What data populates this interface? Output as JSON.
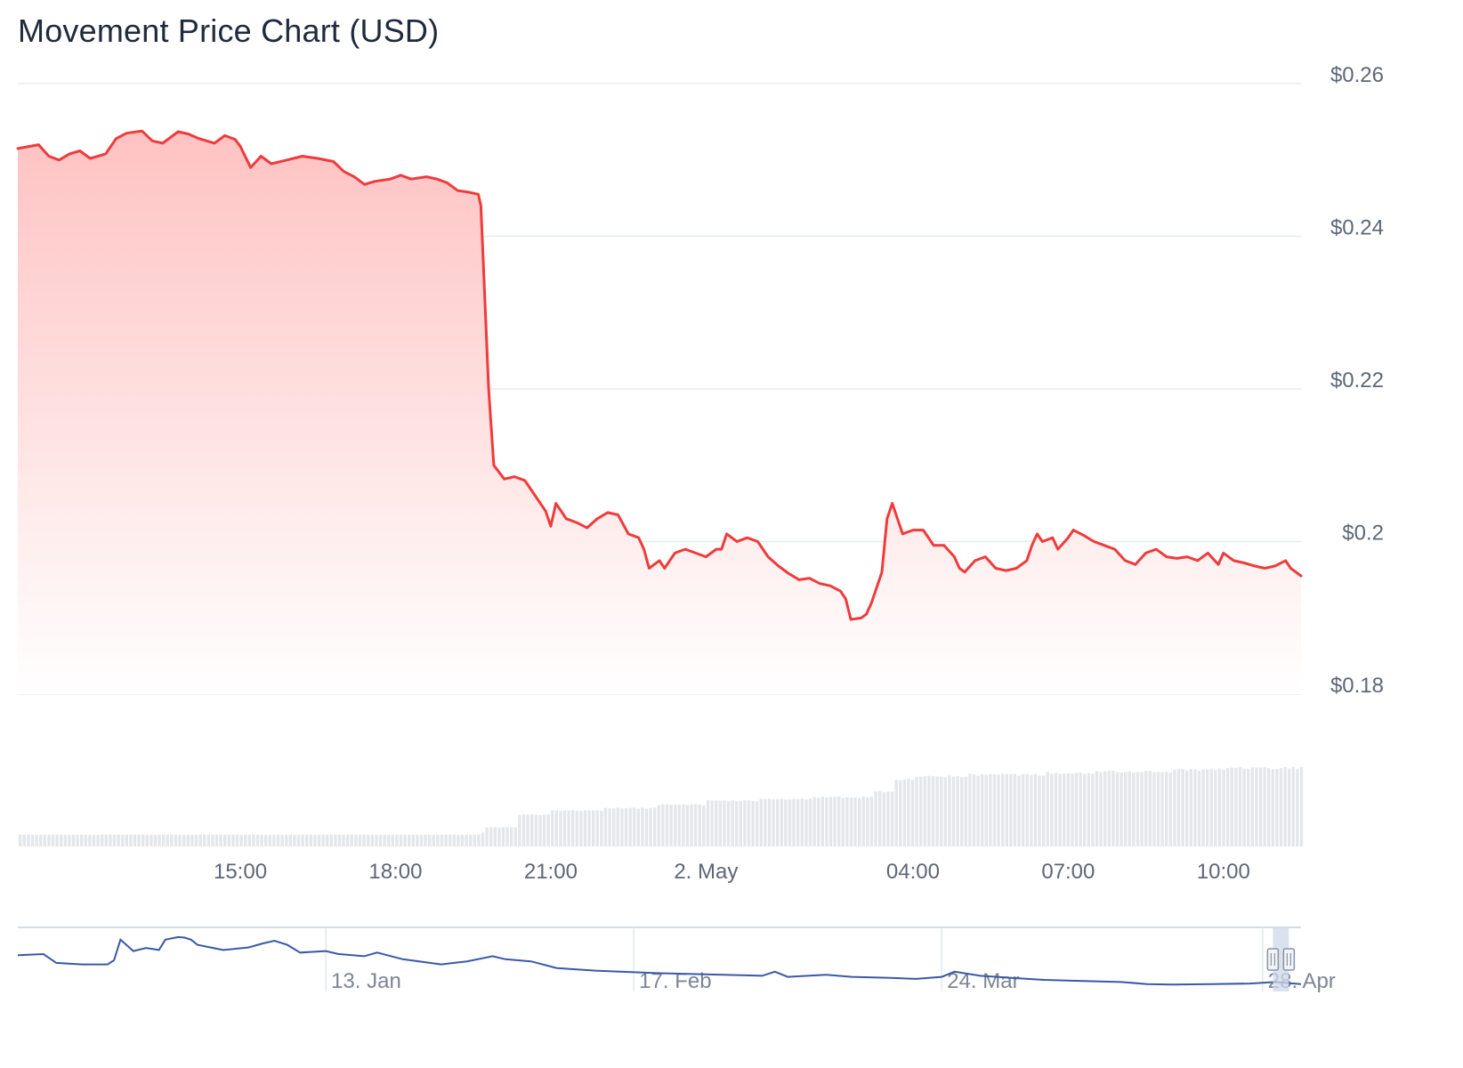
{
  "colors": {
    "price_line": "#ef3b3b",
    "area_top": "#ffc2c2",
    "area_bottom": "#ffffff",
    "grid": "#e8ebef",
    "volume": "#e3e7ec",
    "navigator_line": "#3a58a8",
    "navigator_handle": "#cfd8ea"
  },
  "chart_data": {
    "type": "line",
    "title": "Movement Price Chart (USD)",
    "currency": "USD",
    "ylim": [
      0.18,
      0.26
    ],
    "y_ticks": [
      {
        "value": 0.26,
        "label": "$0.26"
      },
      {
        "value": 0.24,
        "label": "$0.24"
      },
      {
        "value": 0.22,
        "label": "$0.22"
      },
      {
        "value": 0.2,
        "label": "$0.2"
      },
      {
        "value": 0.18,
        "label": "$0.18"
      }
    ],
    "x_range_hours": [
      -2.3,
      22.5
    ],
    "x_ticks": [
      {
        "hour": 2,
        "label": "15:00"
      },
      {
        "hour": 5,
        "label": "18:00"
      },
      {
        "hour": 8,
        "label": "21:00"
      },
      {
        "hour": 11,
        "label": "2. May"
      },
      {
        "hour": 15,
        "label": "04:00"
      },
      {
        "hour": 18,
        "label": "07:00"
      },
      {
        "hour": 21,
        "label": "10:00"
      }
    ],
    "x_unit": "hours since 13:00, 1 May",
    "series": [
      {
        "name": "Price",
        "points": [
          [
            -2.3,
            0.2515
          ],
          [
            -1.9,
            0.252
          ],
          [
            -1.7,
            0.2505
          ],
          [
            -1.5,
            0.25
          ],
          [
            -1.3,
            0.2508
          ],
          [
            -1.1,
            0.2512
          ],
          [
            -0.9,
            0.2502
          ],
          [
            -0.6,
            0.2508
          ],
          [
            -0.4,
            0.2528
          ],
          [
            -0.2,
            0.2535
          ],
          [
            0.1,
            0.2538
          ],
          [
            0.3,
            0.2525
          ],
          [
            0.5,
            0.2522
          ],
          [
            0.8,
            0.2537
          ],
          [
            1.0,
            0.2534
          ],
          [
            1.2,
            0.2528
          ],
          [
            1.5,
            0.2522
          ],
          [
            1.7,
            0.2532
          ],
          [
            1.9,
            0.2527
          ],
          [
            2.0,
            0.2518
          ],
          [
            2.2,
            0.249
          ],
          [
            2.4,
            0.2505
          ],
          [
            2.6,
            0.2495
          ],
          [
            2.9,
            0.25
          ],
          [
            3.2,
            0.2505
          ],
          [
            3.5,
            0.2502
          ],
          [
            3.8,
            0.2498
          ],
          [
            4.0,
            0.2485
          ],
          [
            4.2,
            0.2478
          ],
          [
            4.4,
            0.2468
          ],
          [
            4.6,
            0.2472
          ],
          [
            4.9,
            0.2475
          ],
          [
            5.1,
            0.248
          ],
          [
            5.3,
            0.2475
          ],
          [
            5.6,
            0.2478
          ],
          [
            5.8,
            0.2475
          ],
          [
            6.0,
            0.247
          ],
          [
            6.2,
            0.246
          ],
          [
            6.4,
            0.2458
          ],
          [
            6.6,
            0.2455
          ],
          [
            6.65,
            0.244
          ],
          [
            6.8,
            0.22
          ],
          [
            6.9,
            0.21
          ],
          [
            7.1,
            0.2082
          ],
          [
            7.3,
            0.2085
          ],
          [
            7.5,
            0.208
          ],
          [
            7.7,
            0.206
          ],
          [
            7.9,
            0.204
          ],
          [
            8.0,
            0.202
          ],
          [
            8.1,
            0.205
          ],
          [
            8.3,
            0.203
          ],
          [
            8.5,
            0.2025
          ],
          [
            8.7,
            0.2018
          ],
          [
            8.9,
            0.203
          ],
          [
            9.1,
            0.2038
          ],
          [
            9.3,
            0.2035
          ],
          [
            9.5,
            0.201
          ],
          [
            9.7,
            0.2005
          ],
          [
            9.8,
            0.199
          ],
          [
            9.9,
            0.1965
          ],
          [
            10.1,
            0.1975
          ],
          [
            10.2,
            0.1965
          ],
          [
            10.4,
            0.1985
          ],
          [
            10.6,
            0.199
          ],
          [
            10.8,
            0.1985
          ],
          [
            11.0,
            0.198
          ],
          [
            11.2,
            0.199
          ],
          [
            11.3,
            0.199
          ],
          [
            11.4,
            0.201
          ],
          [
            11.6,
            0.2
          ],
          [
            11.8,
            0.2005
          ],
          [
            12.0,
            0.2
          ],
          [
            12.2,
            0.198
          ],
          [
            12.4,
            0.1968
          ],
          [
            12.6,
            0.1958
          ],
          [
            12.8,
            0.195
          ],
          [
            13.0,
            0.1952
          ],
          [
            13.2,
            0.1945
          ],
          [
            13.4,
            0.1942
          ],
          [
            13.6,
            0.1935
          ],
          [
            13.7,
            0.1925
          ],
          [
            13.8,
            0.1898
          ],
          [
            14.0,
            0.19
          ],
          [
            14.1,
            0.1905
          ],
          [
            14.2,
            0.192
          ],
          [
            14.4,
            0.196
          ],
          [
            14.5,
            0.203
          ],
          [
            14.6,
            0.205
          ],
          [
            14.7,
            0.203
          ],
          [
            14.8,
            0.201
          ],
          [
            15.0,
            0.2015
          ],
          [
            15.2,
            0.2015
          ],
          [
            15.4,
            0.1995
          ],
          [
            15.6,
            0.1995
          ],
          [
            15.8,
            0.198
          ],
          [
            15.9,
            0.1965
          ],
          [
            16.0,
            0.196
          ],
          [
            16.2,
            0.1975
          ],
          [
            16.4,
            0.198
          ],
          [
            16.6,
            0.1965
          ],
          [
            16.8,
            0.1962
          ],
          [
            17.0,
            0.1965
          ],
          [
            17.2,
            0.1975
          ],
          [
            17.3,
            0.1995
          ],
          [
            17.4,
            0.201
          ],
          [
            17.5,
            0.2
          ],
          [
            17.7,
            0.2005
          ],
          [
            17.8,
            0.199
          ],
          [
            18.0,
            0.2005
          ],
          [
            18.1,
            0.2015
          ],
          [
            18.3,
            0.2008
          ],
          [
            18.5,
            0.2
          ],
          [
            18.7,
            0.1995
          ],
          [
            18.9,
            0.199
          ],
          [
            19.1,
            0.1975
          ],
          [
            19.3,
            0.197
          ],
          [
            19.5,
            0.1985
          ],
          [
            19.7,
            0.199
          ],
          [
            19.9,
            0.198
          ],
          [
            20.1,
            0.1978
          ],
          [
            20.3,
            0.198
          ],
          [
            20.5,
            0.1975
          ],
          [
            20.7,
            0.1985
          ],
          [
            20.9,
            0.197
          ],
          [
            21.0,
            0.1985
          ],
          [
            21.2,
            0.1975
          ],
          [
            21.4,
            0.1972
          ],
          [
            21.6,
            0.1968
          ],
          [
            21.8,
            0.1965
          ],
          [
            22.0,
            0.1968
          ],
          [
            22.2,
            0.1975
          ],
          [
            22.3,
            0.1965
          ],
          [
            22.5,
            0.1955
          ]
        ]
      },
      {
        "name": "Volume",
        "levels": [
          [
            -2.3,
            0.14
          ],
          [
            6.6,
            0.17
          ],
          [
            6.7,
            0.23
          ],
          [
            7.3,
            0.38
          ],
          [
            8.0,
            0.43
          ],
          [
            9.0,
            0.46
          ],
          [
            10.0,
            0.5
          ],
          [
            11.0,
            0.55
          ],
          [
            12.0,
            0.57
          ],
          [
            13.0,
            0.59
          ],
          [
            14.2,
            0.66
          ],
          [
            14.6,
            0.8
          ],
          [
            15.0,
            0.84
          ],
          [
            16.0,
            0.86
          ],
          [
            17.5,
            0.88
          ],
          [
            18.5,
            0.9
          ],
          [
            20.0,
            0.92
          ],
          [
            21.0,
            0.94
          ],
          [
            22.5,
            0.94
          ]
        ]
      }
    ],
    "navigator": {
      "x_ticks": [
        {
          "pos": 0.24,
          "label": "13. Jan"
        },
        {
          "pos": 0.48,
          "label": "17. Feb"
        },
        {
          "pos": 0.72,
          "label": "24. Mar"
        },
        {
          "pos": 0.97,
          "label": "28. Apr"
        }
      ],
      "points": [
        [
          0.0,
          0.4
        ],
        [
          0.02,
          0.38
        ],
        [
          0.03,
          0.55
        ],
        [
          0.05,
          0.58
        ],
        [
          0.07,
          0.58
        ],
        [
          0.075,
          0.5
        ],
        [
          0.08,
          0.1
        ],
        [
          0.09,
          0.32
        ],
        [
          0.1,
          0.26
        ],
        [
          0.11,
          0.3
        ],
        [
          0.115,
          0.1
        ],
        [
          0.125,
          0.05
        ],
        [
          0.13,
          0.06
        ],
        [
          0.135,
          0.1
        ],
        [
          0.14,
          0.2
        ],
        [
          0.15,
          0.25
        ],
        [
          0.16,
          0.3
        ],
        [
          0.18,
          0.25
        ],
        [
          0.19,
          0.18
        ],
        [
          0.2,
          0.12
        ],
        [
          0.21,
          0.2
        ],
        [
          0.22,
          0.35
        ],
        [
          0.24,
          0.32
        ],
        [
          0.25,
          0.38
        ],
        [
          0.27,
          0.42
        ],
        [
          0.28,
          0.35
        ],
        [
          0.3,
          0.48
        ],
        [
          0.33,
          0.58
        ],
        [
          0.35,
          0.52
        ],
        [
          0.37,
          0.42
        ],
        [
          0.38,
          0.48
        ],
        [
          0.4,
          0.52
        ],
        [
          0.42,
          0.65
        ],
        [
          0.45,
          0.7
        ],
        [
          0.5,
          0.75
        ],
        [
          0.55,
          0.78
        ],
        [
          0.58,
          0.8
        ],
        [
          0.59,
          0.72
        ],
        [
          0.6,
          0.82
        ],
        [
          0.63,
          0.78
        ],
        [
          0.65,
          0.82
        ],
        [
          0.68,
          0.84
        ],
        [
          0.7,
          0.86
        ],
        [
          0.72,
          0.82
        ],
        [
          0.73,
          0.72
        ],
        [
          0.75,
          0.8
        ],
        [
          0.78,
          0.85
        ],
        [
          0.8,
          0.88
        ],
        [
          0.83,
          0.9
        ],
        [
          0.86,
          0.92
        ],
        [
          0.88,
          0.96
        ],
        [
          0.9,
          0.97
        ],
        [
          0.93,
          0.96
        ],
        [
          0.96,
          0.95
        ],
        [
          0.98,
          0.92
        ],
        [
          1.0,
          0.96
        ]
      ]
    }
  }
}
